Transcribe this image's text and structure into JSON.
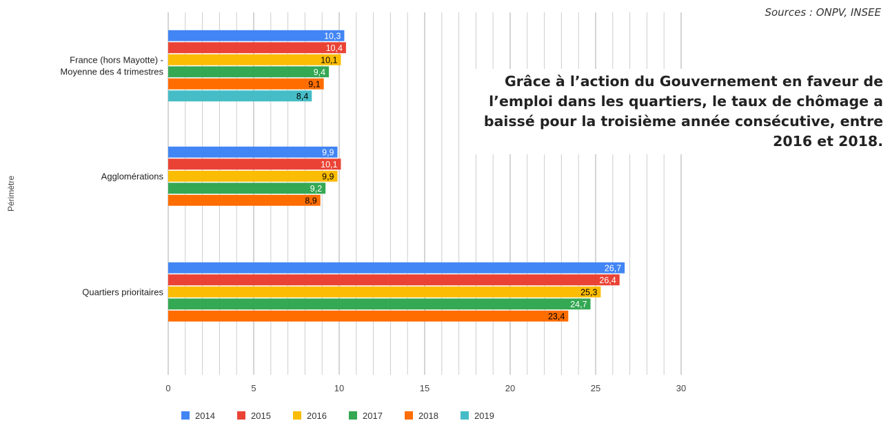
{
  "source": "Sources : ONPV, INSEE",
  "headline": "Grâce à l’action du Gouvernement en faveur de l’emploi dans les quartiers, le taux de chômage a baissé pour la troisième année consécutive, entre 2016 et 2018.",
  "chart_data": {
    "type": "bar",
    "orientation": "horizontal",
    "ylabel": "Périmètre",
    "categories": [
      "France (hors Mayotte) - Moyenne des 4 trimestres",
      "Agglomérations",
      "Quartiers prioritaires"
    ],
    "category_lines": [
      [
        "France (hors Mayotte) -",
        "Moyenne des 4 trimestres"
      ],
      [
        "Agglomérations"
      ],
      [
        "Quartiers prioritaires"
      ]
    ],
    "xlim": [
      0,
      30
    ],
    "x_ticks": [
      0,
      5,
      10,
      15,
      20,
      25,
      30
    ],
    "grid": true,
    "legend_position": "bottom",
    "series": [
      {
        "name": "2014",
        "color": "#4285f4",
        "values": [
          10.3,
          9.9,
          26.7
        ],
        "labels": [
          "10,3",
          "9,9",
          "26,7"
        ],
        "label_color": "#ffffff"
      },
      {
        "name": "2015",
        "color": "#ea4335",
        "values": [
          10.4,
          10.1,
          26.4
        ],
        "labels": [
          "10,4",
          "10,1",
          "26,4"
        ],
        "label_color": "#ffffff"
      },
      {
        "name": "2016",
        "color": "#fbbc04",
        "values": [
          10.1,
          9.9,
          25.3
        ],
        "labels": [
          "10,1",
          "9,9",
          "25,3"
        ],
        "label_color": "#000000"
      },
      {
        "name": "2017",
        "color": "#34a853",
        "values": [
          9.4,
          9.2,
          24.7
        ],
        "labels": [
          "9,4",
          "9,2",
          "24,7"
        ],
        "label_color": "#ffffff"
      },
      {
        "name": "2018",
        "color": "#ff6d01",
        "values": [
          9.1,
          8.9,
          23.4
        ],
        "labels": [
          "9,1",
          "8,9",
          "23,4"
        ],
        "label_color": "#000000"
      },
      {
        "name": "2019",
        "color": "#46bdc6",
        "values": [
          8.4,
          null,
          null
        ],
        "labels": [
          "8,4",
          null,
          null
        ],
        "label_color": "#000000"
      }
    ]
  }
}
